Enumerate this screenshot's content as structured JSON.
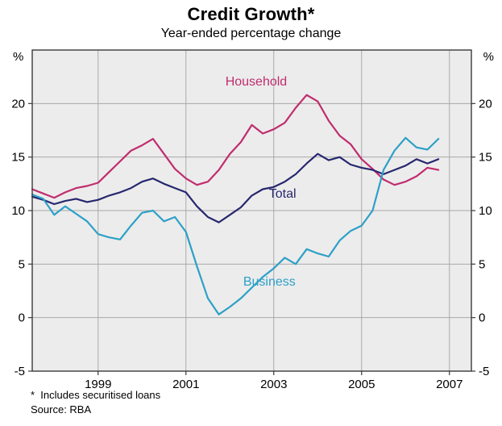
{
  "chart": {
    "title": "Credit Growth*",
    "subtitle": "Year-ended percentage change",
    "unit_left": "%",
    "unit_right": "%",
    "footnote": "*  Includes securitised loans",
    "source": "Source: RBA"
  },
  "chart_data": {
    "type": "line",
    "title": "Credit Growth*",
    "subtitle": "Year-ended percentage change",
    "ylabel": "%",
    "xlim": [
      1997.5,
      2007.5
    ],
    "ylim": [
      -5,
      25
    ],
    "yticks": [
      -5,
      0,
      5,
      10,
      15,
      20
    ],
    "xticks": [
      1999,
      2001,
      2003,
      2005,
      2007
    ],
    "grid": true,
    "plot_bg": "#ececec",
    "grid_color": "#a9a9a9",
    "frame_color": "#3a3a3a",
    "x": [
      1997.5,
      1997.75,
      1998,
      1998.25,
      1998.5,
      1998.75,
      1999,
      1999.25,
      1999.5,
      1999.75,
      2000,
      2000.25,
      2000.5,
      2000.75,
      2001,
      2001.25,
      2001.5,
      2001.75,
      2002,
      2002.25,
      2002.5,
      2002.75,
      2003,
      2003.25,
      2003.5,
      2003.75,
      2004,
      2004.25,
      2004.5,
      2004.75,
      2005,
      2005.25,
      2005.5,
      2005.75,
      2006,
      2006.25,
      2006.5,
      2006.75
    ],
    "series": [
      {
        "name": "Household",
        "color": "#c02d6e",
        "label_x": 2002.6,
        "label_y": 21.7,
        "values": [
          12.0,
          11.6,
          11.2,
          11.7,
          12.1,
          12.3,
          12.6,
          13.6,
          14.6,
          15.6,
          16.1,
          16.7,
          15.3,
          13.9,
          13.0,
          12.4,
          12.7,
          13.8,
          15.3,
          16.4,
          18.0,
          17.2,
          17.6,
          18.2,
          19.6,
          20.8,
          20.2,
          18.4,
          17.0,
          16.2,
          14.8,
          13.9,
          12.9,
          12.4,
          12.7,
          13.2,
          14.0,
          13.8
        ]
      },
      {
        "name": "Total",
        "color": "#27276f",
        "label_x": 2003.2,
        "label_y": 11.2,
        "values": [
          11.3,
          11.0,
          10.6,
          10.9,
          11.1,
          10.8,
          11.0,
          11.4,
          11.7,
          12.1,
          12.7,
          13.0,
          12.5,
          12.1,
          11.7,
          10.4,
          9.4,
          8.9,
          9.6,
          10.3,
          11.4,
          12.0,
          12.2,
          12.7,
          13.4,
          14.4,
          15.3,
          14.7,
          15.0,
          14.3,
          14.0,
          13.8,
          13.4,
          13.8,
          14.2,
          14.8,
          14.4,
          14.8
        ]
      },
      {
        "name": "Business",
        "color": "#2da0c7",
        "label_x": 2002.9,
        "label_y": 3.0,
        "values": [
          11.5,
          11.1,
          9.6,
          10.4,
          9.7,
          9.0,
          7.8,
          7.5,
          7.3,
          8.6,
          9.8,
          10.0,
          9.0,
          9.4,
          8.0,
          4.8,
          1.8,
          0.3,
          1.0,
          1.8,
          2.8,
          3.8,
          4.6,
          5.6,
          5.0,
          6.4,
          6.0,
          5.7,
          7.2,
          8.1,
          8.6,
          10.0,
          13.8,
          15.6,
          16.8,
          15.9,
          15.7,
          16.7
        ]
      }
    ]
  }
}
